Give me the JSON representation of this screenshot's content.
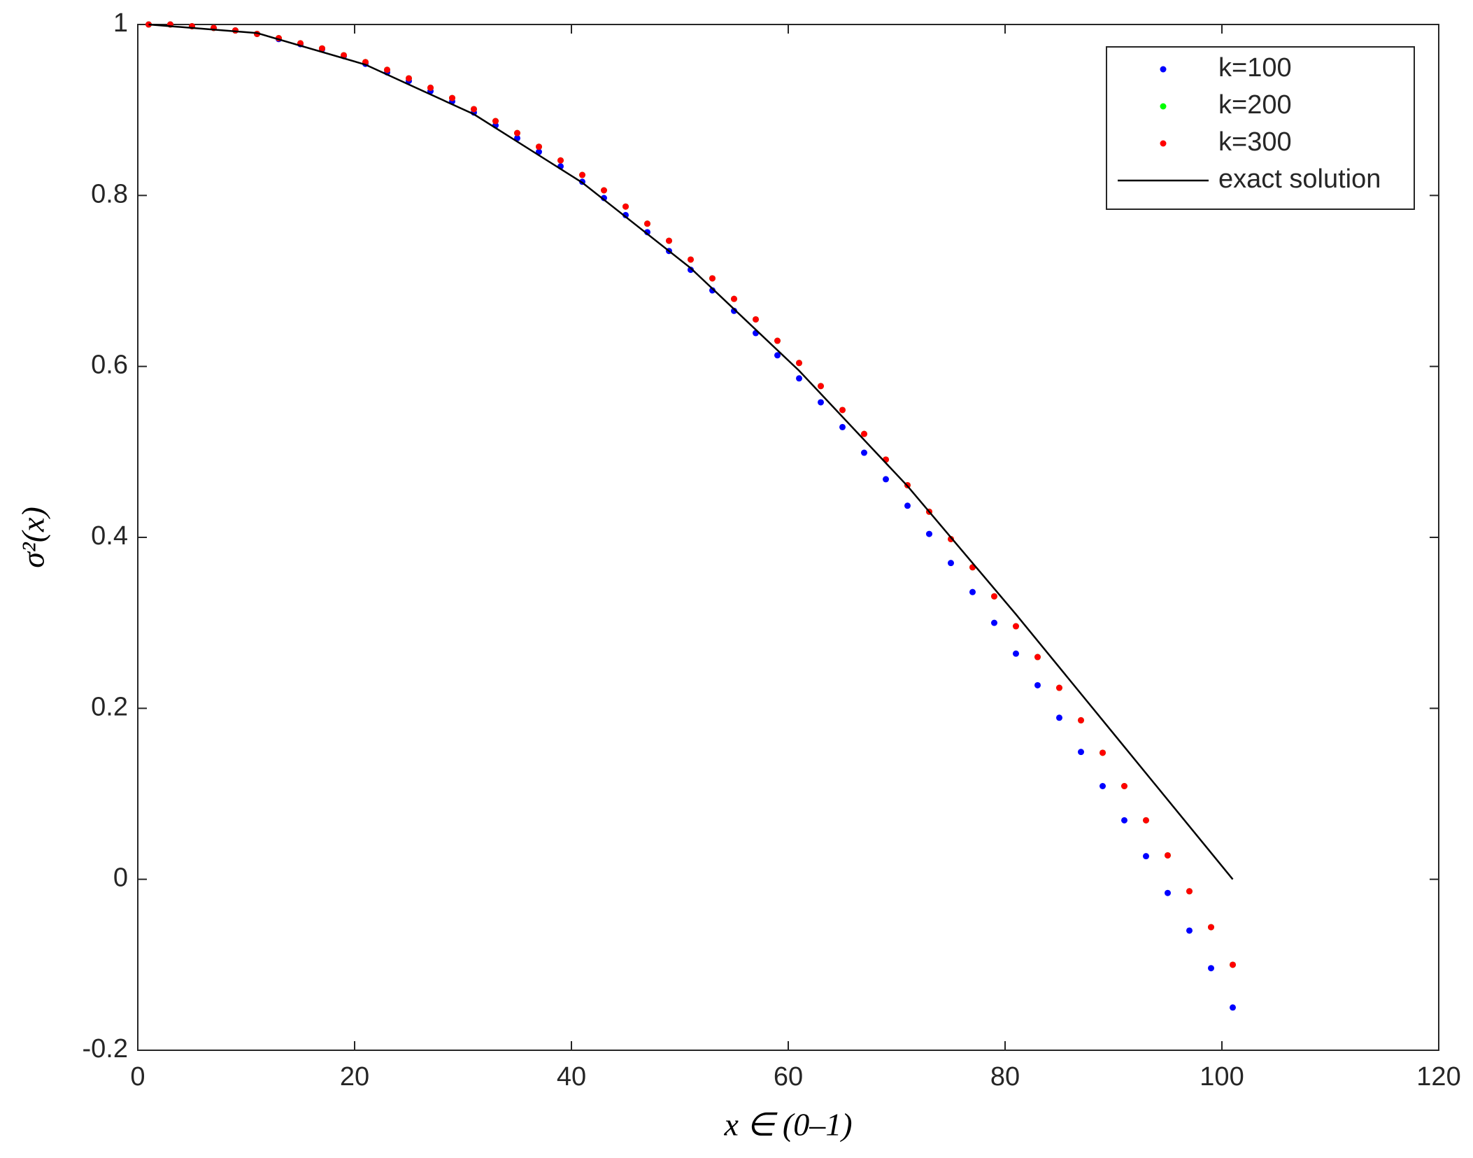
{
  "chart_data": {
    "type": "scatter",
    "xlabel": "x ∈ (0–1)",
    "ylabel": "σ²(x)",
    "xlim": [
      0,
      120
    ],
    "xticks": [
      0,
      20,
      40,
      60,
      80,
      100,
      120
    ],
    "ylim": [
      -0.2,
      1
    ],
    "yticks": [
      -0.2,
      0,
      0.2,
      0.4,
      0.6,
      0.8,
      1
    ],
    "grid": false,
    "legend": "upper right",
    "x": [
      1,
      3,
      5,
      7,
      9,
      11,
      13,
      15,
      17,
      19,
      21,
      23,
      25,
      27,
      29,
      31,
      33,
      35,
      37,
      39,
      41,
      43,
      45,
      47,
      49,
      51,
      53,
      55,
      57,
      59,
      61,
      63,
      65,
      67,
      69,
      71,
      73,
      75,
      77,
      79,
      81,
      83,
      85,
      87,
      89,
      91,
      93,
      95,
      97,
      99,
      101
    ],
    "series": [
      {
        "name": "k=100",
        "color": "#0000ff",
        "style": "markers",
        "values": [
          1,
          1,
          0.998,
          0.996,
          0.993,
          0.989,
          0.983,
          0.977,
          0.971,
          0.963,
          0.954,
          0.944,
          0.934,
          0.922,
          0.91,
          0.897,
          0.882,
          0.867,
          0.851,
          0.834,
          0.816,
          0.797,
          0.777,
          0.757,
          0.735,
          0.713,
          0.689,
          0.665,
          0.639,
          0.613,
          0.586,
          0.558,
          0.529,
          0.499,
          0.468,
          0.437,
          0.404,
          0.37,
          0.336,
          0.3,
          0.264,
          0.227,
          0.189,
          0.149,
          0.109,
          0.069,
          0.027,
          -0.016,
          -0.06,
          -0.104,
          -0.15
        ]
      },
      {
        "name": "k=200",
        "color": "#00ff00",
        "style": "markers",
        "values": [
          1,
          1,
          0.998,
          0.996,
          0.993,
          0.989,
          0.984,
          0.978,
          0.972,
          0.964,
          0.956,
          0.947,
          0.937,
          0.926,
          0.914,
          0.901,
          0.887,
          0.873,
          0.857,
          0.841,
          0.824,
          0.806,
          0.787,
          0.767,
          0.747,
          0.725,
          0.703,
          0.679,
          0.655,
          0.63,
          0.604,
          0.577,
          0.549,
          0.521,
          0.491,
          0.461,
          0.43,
          0.398,
          0.365,
          0.331,
          0.296,
          0.26,
          0.224,
          0.186,
          0.148,
          0.109,
          0.069,
          0.028,
          -0.014,
          -0.056,
          -0.1
        ]
      },
      {
        "name": "k=300",
        "color": "#ff0000",
        "style": "markers",
        "values": [
          1,
          1,
          0.998,
          0.996,
          0.993,
          0.989,
          0.984,
          0.978,
          0.972,
          0.964,
          0.956,
          0.947,
          0.937,
          0.926,
          0.914,
          0.901,
          0.887,
          0.873,
          0.857,
          0.841,
          0.824,
          0.806,
          0.787,
          0.767,
          0.747,
          0.725,
          0.703,
          0.679,
          0.655,
          0.63,
          0.604,
          0.577,
          0.549,
          0.521,
          0.491,
          0.461,
          0.43,
          0.398,
          0.365,
          0.331,
          0.296,
          0.26,
          0.224,
          0.186,
          0.148,
          0.109,
          0.069,
          0.028,
          -0.014,
          -0.056,
          -0.1
        ]
      },
      {
        "name": "exact solution",
        "color": "#000000",
        "style": "line",
        "x": [
          1,
          11,
          21,
          31,
          41,
          51,
          61,
          71,
          81,
          91,
          101
        ],
        "values": [
          1,
          0.99,
          0.953,
          0.895,
          0.815,
          0.715,
          0.595,
          0.46,
          0.31,
          0.155,
          0
        ]
      }
    ]
  }
}
